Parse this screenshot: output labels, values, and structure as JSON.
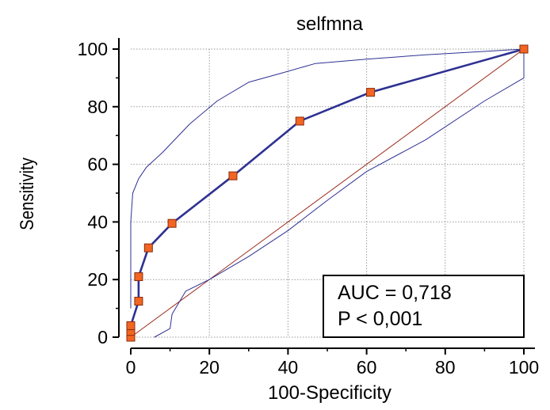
{
  "chart_data": {
    "type": "line",
    "title": "selfmna",
    "xlabel": "100-Specificity",
    "ylabel": "Sensitivity",
    "xlim": [
      0,
      100
    ],
    "ylim": [
      0,
      100
    ],
    "x_ticks": [
      0,
      20,
      40,
      60,
      80,
      100
    ],
    "y_ticks": [
      0,
      20,
      40,
      60,
      80,
      100
    ],
    "grid": true,
    "annotation": {
      "lines": [
        "AUC = 0,718",
        "P < 0,001"
      ],
      "placement": "bottom-right"
    },
    "series": [
      {
        "role": "roc-curve",
        "style": "line-with-square-markers",
        "color": "#2e3192",
        "marker_color": "#f26522",
        "points": [
          [
            0,
            0
          ],
          [
            0,
            2
          ],
          [
            0,
            4
          ],
          [
            2,
            12.5
          ],
          [
            2,
            21
          ],
          [
            4.5,
            31
          ],
          [
            10.5,
            39.5
          ],
          [
            26,
            56
          ],
          [
            43,
            75
          ],
          [
            61,
            85
          ],
          [
            100,
            100
          ]
        ]
      },
      {
        "role": "upper-confidence-bound",
        "style": "thin-line",
        "color": "#2e3192",
        "points": [
          [
            0,
            10
          ],
          [
            0,
            40
          ],
          [
            0.5,
            50
          ],
          [
            2,
            55
          ],
          [
            4,
            59
          ],
          [
            8,
            64
          ],
          [
            15,
            74
          ],
          [
            22,
            82
          ],
          [
            30,
            88.5
          ],
          [
            38,
            91.5
          ],
          [
            47,
            95
          ],
          [
            60,
            96.5
          ],
          [
            75,
            98
          ],
          [
            100,
            100
          ]
        ]
      },
      {
        "role": "lower-confidence-bound",
        "style": "thin-line",
        "color": "#2e3192",
        "points": [
          [
            6,
            0
          ],
          [
            10,
            3
          ],
          [
            10.5,
            8
          ],
          [
            14,
            16
          ],
          [
            20,
            20
          ],
          [
            30,
            28
          ],
          [
            40,
            37
          ],
          [
            50,
            47.5
          ],
          [
            60,
            57.5
          ],
          [
            75,
            68.5
          ],
          [
            90,
            82
          ],
          [
            100,
            90
          ],
          [
            100,
            100
          ]
        ]
      },
      {
        "role": "reference-diagonal",
        "style": "thin-line",
        "color": "#9b2a1a",
        "points": [
          [
            0,
            0
          ],
          [
            100,
            100
          ]
        ]
      }
    ]
  }
}
